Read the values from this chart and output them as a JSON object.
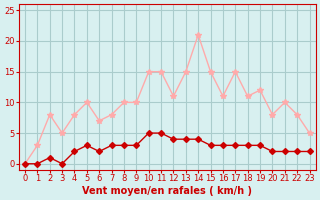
{
  "x": [
    0,
    1,
    2,
    3,
    4,
    5,
    6,
    7,
    8,
    9,
    10,
    11,
    12,
    13,
    14,
    15,
    16,
    17,
    18,
    19,
    20,
    21,
    22,
    23
  ],
  "avg_wind": [
    0,
    0,
    1,
    0,
    2,
    3,
    2,
    3,
    3,
    3,
    5,
    5,
    4,
    4,
    4,
    3,
    3,
    3,
    3,
    3,
    2,
    2,
    2,
    2
  ],
  "gust_wind": [
    0,
    3,
    8,
    5,
    8,
    10,
    7,
    8,
    10,
    10,
    15,
    15,
    11,
    15,
    21,
    15,
    11,
    15,
    11,
    12,
    8,
    10,
    8,
    5
  ],
  "avg_color": "#cc0000",
  "gust_color": "#ffaaaa",
  "bg_color": "#d8f0f0",
  "grid_color": "#aacccc",
  "xlabel": "Vent moyen/en rafales ( km/h )",
  "ylim": [
    -1,
    26
  ],
  "xlim": [
    -0.5,
    23.5
  ],
  "yticks": [
    0,
    5,
    10,
    15,
    20,
    25
  ],
  "xticks": [
    0,
    1,
    2,
    3,
    4,
    5,
    6,
    7,
    8,
    9,
    10,
    11,
    12,
    13,
    14,
    15,
    16,
    17,
    18,
    19,
    20,
    21,
    22,
    23
  ],
  "marker_size_avg": 3,
  "marker_size_gust": 4,
  "line_width": 1.0
}
